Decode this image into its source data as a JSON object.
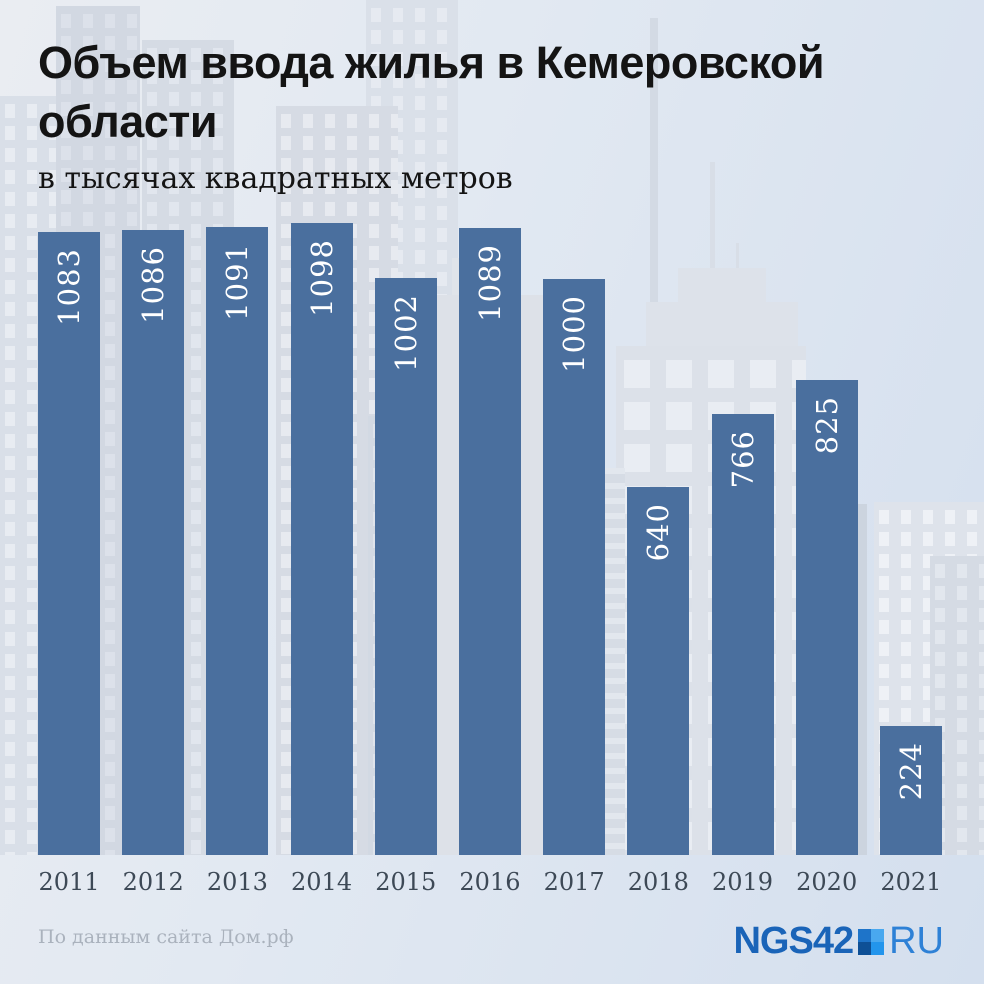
{
  "header": {
    "title": "Объем ввода жилья в Кемеровской области",
    "title_line1": "Объем ввода жилья в Кемеровской",
    "title_line2": "области",
    "subtitle": "в тысячах квадратных метров"
  },
  "chart_data": {
    "type": "bar",
    "title": "Объем ввода жилья в Кемеровской области",
    "subtitle": "в тысячах квадратных метров",
    "unit": "тысячи квадратных метров",
    "categories": [
      "2011",
      "2012",
      "2013",
      "2014",
      "2015",
      "2016",
      "2017",
      "2018",
      "2019",
      "2020",
      "2021"
    ],
    "values": [
      1083,
      1086,
      1091,
      1098,
      1002,
      1089,
      1000,
      640,
      766,
      825,
      224
    ],
    "ylim": [
      0,
      1098
    ],
    "grid": false,
    "legend": false,
    "value_labels": "rotated-90-ccw-inside-bar-top",
    "orientation": "vertical"
  },
  "footer": {
    "source": "По данным сайта Дом.рф",
    "logo": {
      "main": "NGS42",
      "suffix": "RU"
    }
  },
  "colors": {
    "bar": "#4a6f9e",
    "bar_label": "#ffffff",
    "title": "#141414",
    "axis_label": "#3d4956",
    "source": "#aab2bd",
    "logo_main": "#1a64b8",
    "logo_suffix": "#2e81d6",
    "logo_square": [
      "#1e74c9",
      "#49a8ef",
      "#0e5096",
      "#2395ec"
    ]
  }
}
